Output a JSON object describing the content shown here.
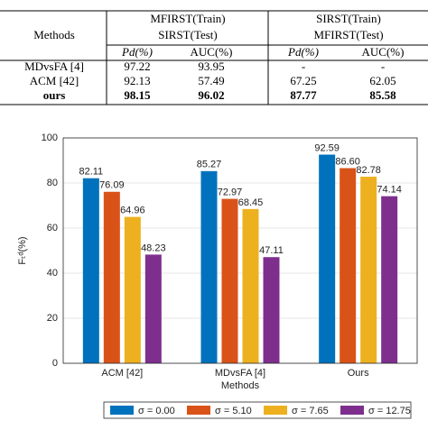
{
  "table": {
    "header": {
      "methods": "Methods",
      "groups": [
        [
          "MFIRST(Train)",
          "SIRST(Test)"
        ],
        [
          "SIRST(Train)",
          "MFIRST(Test)"
        ]
      ],
      "columns": [
        "Pd(%)",
        "AUC(%)",
        "Pd(%)",
        "AUC(%)"
      ]
    },
    "rows": [
      [
        "MDvsFA [4]",
        "97.22",
        "93.95",
        "-",
        "-"
      ],
      [
        "ACM [42]",
        "92.13",
        "57.49",
        "67.25",
        "62.05"
      ],
      [
        "ours",
        "98.15",
        "96.02",
        "87.77",
        "85.58"
      ]
    ],
    "bold_rows": [
      2
    ]
  },
  "chart_data": {
    "type": "bar",
    "xlabel": "Methods",
    "ylabel": "Fₜᵈ(%)",
    "categories": [
      "ACM [42]",
      "MDvsFA [4]",
      "Ours"
    ],
    "series": [
      {
        "name": "σ = 0.00",
        "color": "#0072bd",
        "values": [
          82.11,
          85.27,
          92.59
        ],
        "value_labels": [
          "82.11",
          "85.27",
          "92.59"
        ]
      },
      {
        "name": "σ = 5.10",
        "color": "#d95319",
        "values": [
          76.09,
          72.97,
          86.6
        ],
        "value_labels": [
          "76.09",
          "72.97",
          "86.60"
        ]
      },
      {
        "name": "σ = 7.65",
        "color": "#edb120",
        "values": [
          64.96,
          68.45,
          82.78
        ],
        "value_labels": [
          "64.96",
          "68.45",
          "82.78"
        ]
      },
      {
        "name": "σ = 12.75",
        "color": "#7e2f8e",
        "values": [
          48.23,
          47.11,
          74.14
        ],
        "value_labels": [
          "48.23",
          "47.11",
          "74.14"
        ]
      }
    ],
    "ylim": [
      0,
      100
    ],
    "yticks": [
      0,
      20,
      40,
      60,
      80,
      100
    ],
    "grid": true,
    "legend": "bottom"
  }
}
